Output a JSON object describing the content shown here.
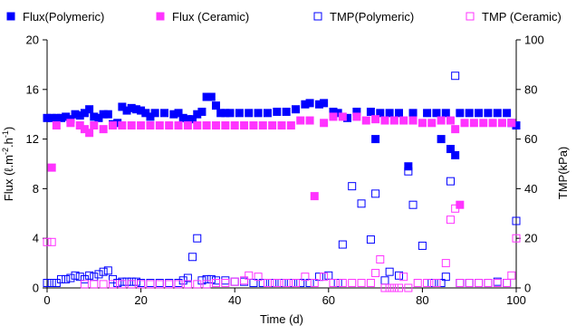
{
  "chart_data": {
    "type": "scatter",
    "title": "",
    "xlabel": "Time (d)",
    "ylabel": "Flux (ℓ.m-2.h-1)",
    "ylabel_parts": [
      "Flux (ℓ.m",
      "-2",
      ".h",
      "-1",
      ")"
    ],
    "y2label": "TMP(kPa)",
    "xlim": [
      0,
      100
    ],
    "ylim": [
      0,
      20
    ],
    "y2lim": [
      0,
      100
    ],
    "x_ticks": [
      "0",
      "20",
      "40",
      "60",
      "80",
      "100"
    ],
    "y_ticks": [
      "0",
      "4",
      "8",
      "12",
      "16",
      "20"
    ],
    "y2_ticks": [
      "0",
      "20",
      "40",
      "60",
      "80",
      "100"
    ],
    "grid": false,
    "legend_position": "top",
    "series": [
      {
        "name": "Flux(Polymeric)",
        "axis": "left",
        "marker": "filled-square",
        "color": "#0000ff",
        "points": [
          [
            0,
            13.7
          ],
          [
            1,
            13.7
          ],
          [
            2,
            13.7
          ],
          [
            3,
            13.7
          ],
          [
            4,
            13.8
          ],
          [
            5,
            13.6
          ],
          [
            6,
            14.0
          ],
          [
            7,
            13.9
          ],
          [
            8,
            14.1
          ],
          [
            9,
            14.4
          ],
          [
            10,
            13.8
          ],
          [
            11,
            13.7
          ],
          [
            12,
            14.0
          ],
          [
            13,
            14.0
          ],
          [
            14,
            13.2
          ],
          [
            15,
            13.3
          ],
          [
            16,
            14.6
          ],
          [
            17,
            14.3
          ],
          [
            18,
            14.5
          ],
          [
            19,
            14.4
          ],
          [
            20,
            14.3
          ],
          [
            21,
            14.1
          ],
          [
            22,
            13.8
          ],
          [
            23,
            14.1
          ],
          [
            25,
            14.1
          ],
          [
            27,
            14.0
          ],
          [
            28,
            14.1
          ],
          [
            29,
            13.7
          ],
          [
            30,
            13.6
          ],
          [
            31,
            13.6
          ],
          [
            32,
            14.0
          ],
          [
            33,
            14.2
          ],
          [
            34,
            15.4
          ],
          [
            35,
            15.4
          ],
          [
            36,
            14.7
          ],
          [
            37,
            14.1
          ],
          [
            38,
            14.1
          ],
          [
            39,
            14.1
          ],
          [
            41,
            14.1
          ],
          [
            43,
            14.1
          ],
          [
            45,
            14.1
          ],
          [
            47,
            14.1
          ],
          [
            49,
            14.2
          ],
          [
            51,
            14.2
          ],
          [
            53,
            14.4
          ],
          [
            55,
            14.8
          ],
          [
            56,
            14.9
          ],
          [
            58,
            14.8
          ],
          [
            59,
            14.9
          ],
          [
            61,
            14.2
          ],
          [
            62,
            14.1
          ],
          [
            64,
            13.7
          ],
          [
            66,
            14.2
          ],
          [
            69,
            14.2
          ],
          [
            70,
            12.0
          ],
          [
            71,
            14.1
          ],
          [
            73,
            14.1
          ],
          [
            75,
            14.1
          ],
          [
            77,
            9.8
          ],
          [
            78,
            14.1
          ],
          [
            81,
            14.1
          ],
          [
            83,
            14.1
          ],
          [
            84,
            12.0
          ],
          [
            85,
            14.1
          ],
          [
            86,
            11.2
          ],
          [
            87,
            10.7
          ],
          [
            88,
            14.1
          ],
          [
            90,
            14.1
          ],
          [
            92,
            14.1
          ],
          [
            94,
            14.1
          ],
          [
            96,
            14.1
          ],
          [
            98,
            14.1
          ],
          [
            99,
            13.3
          ],
          [
            100,
            13.1
          ]
        ]
      },
      {
        "name": "Flux (Ceramic)",
        "axis": "left",
        "marker": "filled-square",
        "color": "#ff33ff",
        "points": [
          [
            1,
            9.7
          ],
          [
            2,
            13.1
          ],
          [
            5,
            13.3
          ],
          [
            7,
            13.1
          ],
          [
            8,
            12.8
          ],
          [
            9,
            12.5
          ],
          [
            10,
            13.1
          ],
          [
            12,
            12.8
          ],
          [
            14,
            13.1
          ],
          [
            16,
            13.1
          ],
          [
            18,
            13.1
          ],
          [
            20,
            13.1
          ],
          [
            22,
            13.1
          ],
          [
            24,
            13.1
          ],
          [
            26,
            13.1
          ],
          [
            28,
            13.1
          ],
          [
            30,
            13.1
          ],
          [
            32,
            13.1
          ],
          [
            34,
            13.1
          ],
          [
            36,
            13.1
          ],
          [
            38,
            13.1
          ],
          [
            40,
            13.1
          ],
          [
            42,
            13.1
          ],
          [
            44,
            13.1
          ],
          [
            46,
            13.1
          ],
          [
            48,
            13.1
          ],
          [
            50,
            13.1
          ],
          [
            52,
            13.1
          ],
          [
            54,
            13.5
          ],
          [
            56,
            13.5
          ],
          [
            57,
            7.4
          ],
          [
            59,
            13.3
          ],
          [
            61,
            13.8
          ],
          [
            63,
            13.8
          ],
          [
            66,
            13.8
          ],
          [
            68,
            13.5
          ],
          [
            70,
            13.6
          ],
          [
            72,
            13.5
          ],
          [
            74,
            13.5
          ],
          [
            76,
            13.5
          ],
          [
            78,
            13.5
          ],
          [
            80,
            13.3
          ],
          [
            82,
            13.3
          ],
          [
            84,
            13.5
          ],
          [
            86,
            13.5
          ],
          [
            87,
            12.8
          ],
          [
            88,
            6.7
          ],
          [
            89,
            13.3
          ],
          [
            91,
            13.3
          ],
          [
            93,
            13.3
          ],
          [
            95,
            13.3
          ],
          [
            97,
            13.3
          ],
          [
            99,
            13.3
          ]
        ]
      },
      {
        "name": "TMP(Polymeric)",
        "axis": "right",
        "marker": "open-square",
        "color": "#0000ff",
        "points": [
          [
            0,
            2.0
          ],
          [
            1,
            2.0
          ],
          [
            2,
            2.0
          ],
          [
            3,
            3.5
          ],
          [
            4,
            3.5
          ],
          [
            5,
            4.0
          ],
          [
            6,
            5.0
          ],
          [
            7,
            4.5
          ],
          [
            8,
            3.5
          ],
          [
            9,
            5.0
          ],
          [
            10,
            4.5
          ],
          [
            11,
            5.5
          ],
          [
            12,
            6.5
          ],
          [
            13,
            7.0
          ],
          [
            14,
            3.5
          ],
          [
            15,
            2.0
          ],
          [
            16,
            2.5
          ],
          [
            17,
            2.5
          ],
          [
            18,
            2.5
          ],
          [
            19,
            2.5
          ],
          [
            20,
            2.0
          ],
          [
            22,
            2.0
          ],
          [
            24,
            2.0
          ],
          [
            26,
            2.0
          ],
          [
            28,
            2.0
          ],
          [
            29,
            3.0
          ],
          [
            30,
            4.0
          ],
          [
            31,
            12.5
          ],
          [
            32,
            20.0
          ],
          [
            33,
            3.0
          ],
          [
            34,
            3.5
          ],
          [
            35,
            3.5
          ],
          [
            36,
            3.0
          ],
          [
            38,
            3.0
          ],
          [
            40,
            2.5
          ],
          [
            42,
            2.5
          ],
          [
            44,
            2.0
          ],
          [
            46,
            2.0
          ],
          [
            48,
            2.0
          ],
          [
            50,
            2.0
          ],
          [
            52,
            2.0
          ],
          [
            54,
            2.0
          ],
          [
            56,
            2.0
          ],
          [
            58,
            4.5
          ],
          [
            60,
            5.0
          ],
          [
            62,
            2.0
          ],
          [
            63,
            17.5
          ],
          [
            65,
            41.0
          ],
          [
            67,
            34.0
          ],
          [
            69,
            19.5
          ],
          [
            70,
            38.0
          ],
          [
            72,
            3.0
          ],
          [
            73,
            6.5
          ],
          [
            75,
            5.0
          ],
          [
            77,
            47.0
          ],
          [
            78,
            33.5
          ],
          [
            80,
            17.0
          ],
          [
            82,
            2.0
          ],
          [
            84,
            2.0
          ],
          [
            85,
            4.5
          ],
          [
            86,
            43.0
          ],
          [
            87,
            85.5
          ],
          [
            88,
            2.0
          ],
          [
            90,
            2.0
          ],
          [
            92,
            2.0
          ],
          [
            94,
            2.0
          ],
          [
            96,
            2.5
          ],
          [
            98,
            2.0
          ],
          [
            100,
            27.0
          ]
        ]
      },
      {
        "name": "TMP (Ceramic)",
        "axis": "right",
        "marker": "open-square",
        "color": "#ff33ff",
        "points": [
          [
            0,
            18.5
          ],
          [
            1,
            18.5
          ],
          [
            8,
            1.5
          ],
          [
            10,
            1.5
          ],
          [
            12,
            1.5
          ],
          [
            14,
            1.5
          ],
          [
            16,
            1.5
          ],
          [
            18,
            1.5
          ],
          [
            20,
            1.5
          ],
          [
            22,
            1.5
          ],
          [
            24,
            1.5
          ],
          [
            26,
            1.5
          ],
          [
            28,
            1.5
          ],
          [
            30,
            1.5
          ],
          [
            32,
            1.5
          ],
          [
            34,
            1.5
          ],
          [
            36,
            2.0
          ],
          [
            38,
            2.0
          ],
          [
            40,
            2.5
          ],
          [
            42,
            3.0
          ],
          [
            43,
            5.0
          ],
          [
            45,
            4.5
          ],
          [
            47,
            2.0
          ],
          [
            49,
            2.0
          ],
          [
            51,
            2.0
          ],
          [
            53,
            2.0
          ],
          [
            55,
            4.5
          ],
          [
            57,
            2.0
          ],
          [
            59,
            4.5
          ],
          [
            61,
            2.0
          ],
          [
            63,
            2.0
          ],
          [
            65,
            2.0
          ],
          [
            67,
            2.0
          ],
          [
            69,
            2.0
          ],
          [
            70,
            6.0
          ],
          [
            71,
            11.5
          ],
          [
            72,
            0.0
          ],
          [
            73,
            0.0
          ],
          [
            74,
            0.0
          ],
          [
            75,
            0.0
          ],
          [
            76,
            4.5
          ],
          [
            77,
            0.0
          ],
          [
            79,
            2.0
          ],
          [
            81,
            2.0
          ],
          [
            83,
            2.0
          ],
          [
            85,
            10.0
          ],
          [
            86,
            27.5
          ],
          [
            87,
            32.0
          ],
          [
            88,
            2.0
          ],
          [
            90,
            2.0
          ],
          [
            92,
            2.0
          ],
          [
            94,
            2.0
          ],
          [
            96,
            2.0
          ],
          [
            98,
            2.0
          ],
          [
            99,
            5.0
          ],
          [
            100,
            20.0
          ]
        ]
      }
    ]
  }
}
